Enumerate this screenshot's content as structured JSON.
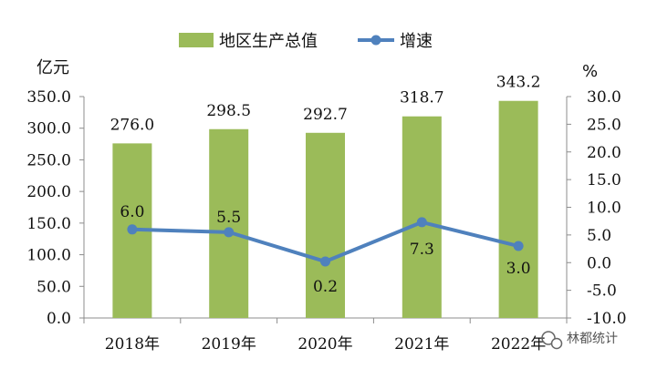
{
  "chart_data": {
    "type": "bar",
    "categories": [
      "2018年",
      "2019年",
      "2020年",
      "2021年",
      "2022年"
    ],
    "series": [
      {
        "name": "地区生产总值",
        "kind": "bar",
        "axis": "left",
        "values": [
          276.0,
          298.5,
          292.7,
          318.7,
          343.2
        ],
        "color": "#9BBB59"
      },
      {
        "name": "增速",
        "kind": "line",
        "axis": "right",
        "values": [
          6.0,
          5.5,
          0.2,
          7.3,
          3.0
        ],
        "color": "#4F81BD"
      }
    ],
    "ylabel": "亿元",
    "ylabel_right": "%",
    "ylim": [
      0,
      350
    ],
    "ylim_right": [
      -10,
      30
    ],
    "yticks": [
      "0.0",
      "50.0",
      "100.0",
      "150.0",
      "200.0",
      "250.0",
      "300.0",
      "350.0"
    ],
    "yticks_right": [
      "-10.0",
      "-5.0",
      "0.0",
      "5.0",
      "10.0",
      "15.0",
      "20.0",
      "25.0",
      "30.0"
    ],
    "bar_labels": [
      "276.0",
      "298.5",
      "292.7",
      "318.7",
      "343.2"
    ],
    "line_labels": [
      "6.0",
      "5.5",
      "0.2",
      "7.3",
      "3.0"
    ],
    "legend_position": "top",
    "grid": false
  },
  "watermark": {
    "text": "林都统计",
    "icon": "wechat-icon"
  }
}
